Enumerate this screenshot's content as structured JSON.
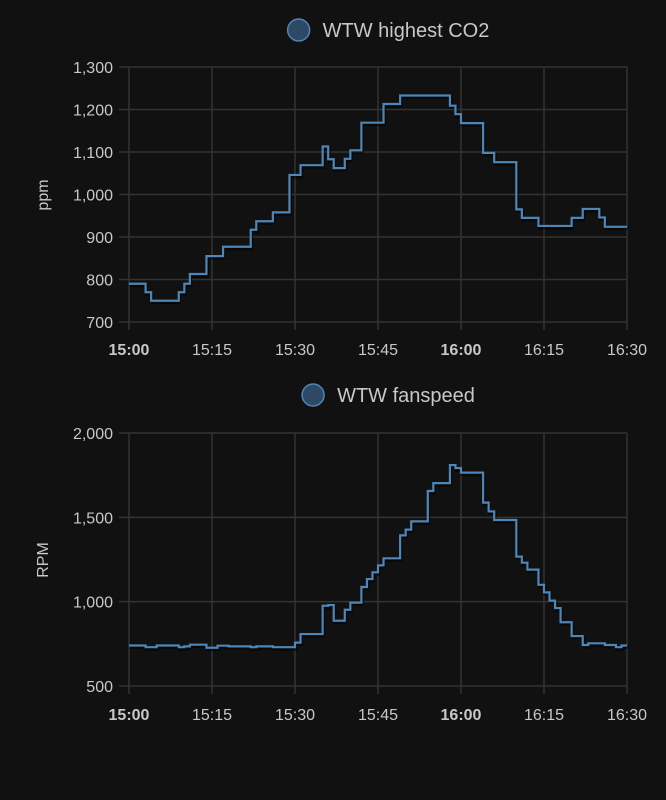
{
  "colors": {
    "background": "#111111",
    "grid": "#333333",
    "line": "#4e86b8",
    "legend_fill": "#2e4965",
    "text": "#c8c8c8"
  },
  "chart_data": [
    {
      "type": "line",
      "step": true,
      "legend": "WTW highest CO2",
      "legend_placement": "top-center",
      "ylabel": "ppm",
      "ylim": [
        700,
        1300
      ],
      "yticks": [
        "700",
        "800",
        "900",
        "1,000",
        "1,100",
        "1,200",
        "1,300"
      ],
      "ytick_values": [
        700,
        800,
        900,
        1000,
        1100,
        1200,
        1300
      ],
      "xlim": [
        "15:00",
        "16:30"
      ],
      "xticks": [
        "15:00",
        "15:15",
        "15:30",
        "15:45",
        "16:00",
        "16:15",
        "16:30"
      ],
      "bold_xticks": [
        "15:00",
        "16:00"
      ],
      "grid": true,
      "series": [
        {
          "x": [
            "15:00",
            "15:03",
            "15:04",
            "15:09",
            "15:10",
            "15:11",
            "15:14",
            "15:17",
            "15:22",
            "15:23",
            "15:26",
            "15:29",
            "15:31",
            "15:35",
            "15:36",
            "15:37",
            "15:39",
            "15:40",
            "15:42",
            "15:46",
            "15:49",
            "15:58",
            "15:59",
            "16:00",
            "16:04",
            "16:06",
            "16:10",
            "16:11",
            "16:14",
            "16:20",
            "16:22",
            "16:25",
            "16:26",
            "16:30"
          ],
          "y": [
            790,
            770,
            750,
            770,
            790,
            813,
            855,
            877,
            917,
            937,
            958,
            1046,
            1069,
            1113,
            1083,
            1062,
            1084,
            1104,
            1169,
            1213,
            1233,
            1209,
            1189,
            1168,
            1098,
            1076,
            965,
            945,
            926,
            945,
            966,
            946,
            924,
            924
          ]
        }
      ]
    },
    {
      "type": "line",
      "step": true,
      "legend": "WTW fanspeed",
      "legend_placement": "top-center",
      "ylabel": "RPM",
      "ylim": [
        500,
        2000
      ],
      "yticks": [
        "500",
        "1,000",
        "1,500",
        "2,000"
      ],
      "ytick_values": [
        500,
        1000,
        1500,
        2000
      ],
      "xlim": [
        "15:00",
        "16:30"
      ],
      "xticks": [
        "15:00",
        "15:15",
        "15:30",
        "15:45",
        "16:00",
        "16:15",
        "16:30"
      ],
      "bold_xticks": [
        "15:00",
        "16:00"
      ],
      "grid": true,
      "series": [
        {
          "x": [
            "15:00",
            "15:03",
            "15:05",
            "15:09",
            "15:10",
            "15:11",
            "15:14",
            "15:16",
            "15:18",
            "15:22",
            "15:23",
            "15:26",
            "15:30",
            "15:31",
            "15:35",
            "15:36",
            "15:37",
            "15:39",
            "15:40",
            "15:42",
            "15:43",
            "15:44",
            "15:45",
            "15:46",
            "15:49",
            "15:50",
            "15:51",
            "15:54",
            "15:55",
            "15:58",
            "15:59",
            "16:00",
            "16:04",
            "16:05",
            "16:06",
            "16:10",
            "16:11",
            "16:12",
            "16:14",
            "16:15",
            "16:16",
            "16:17",
            "16:18",
            "16:20",
            "16:22",
            "16:23",
            "16:26",
            "16:28",
            "16:29",
            "16:30"
          ],
          "y": [
            740,
            730,
            740,
            730,
            735,
            745,
            727,
            739,
            735,
            730,
            735,
            730,
            757,
            808,
            976,
            980,
            887,
            952,
            994,
            1087,
            1134,
            1174,
            1215,
            1257,
            1393,
            1427,
            1476,
            1656,
            1703,
            1810,
            1792,
            1765,
            1587,
            1535,
            1484,
            1267,
            1231,
            1190,
            1100,
            1055,
            1006,
            962,
            878,
            796,
            743,
            753,
            743,
            730,
            740,
            740
          ]
        }
      ]
    }
  ]
}
